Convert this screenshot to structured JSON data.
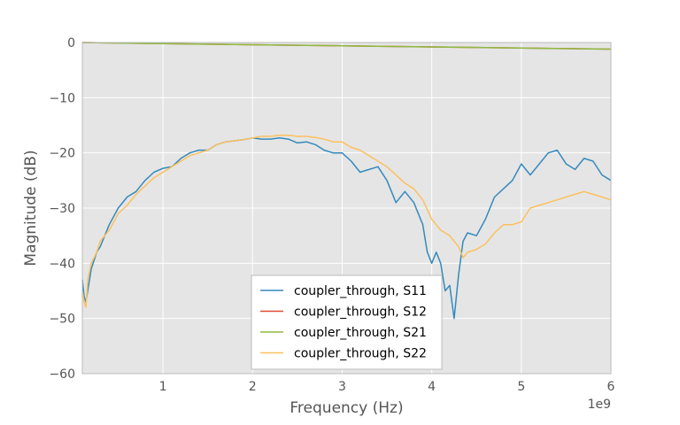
{
  "chart_data": {
    "type": "line",
    "title": "",
    "xlabel": "Frequency (Hz)",
    "ylabel": "Magnitude (dB)",
    "x_offset_label": "1e9",
    "xlim": [
      100000000,
      6000000000
    ],
    "ylim": [
      -60,
      0
    ],
    "xticks": [
      1000000000,
      2000000000,
      3000000000,
      4000000000,
      5000000000,
      6000000000
    ],
    "xtick_labels": [
      "1",
      "2",
      "3",
      "4",
      "5",
      "6"
    ],
    "yticks": [
      0,
      -10,
      -20,
      -30,
      -40,
      -50,
      -60
    ],
    "ytick_labels": [
      "0",
      "−10",
      "−20",
      "−30",
      "−40",
      "−50",
      "−60"
    ],
    "grid": true,
    "legend_position": "lower-center",
    "colors": {
      "background": "#e5e5e5",
      "grid": "#ffffff",
      "border": "#bcbcbc"
    },
    "series": [
      {
        "name": "coupler_through, S11",
        "color": "#348abd",
        "x": [
          100000000,
          120000000,
          140000000,
          160000000,
          200000000,
          260000000,
          300000000,
          350000000,
          400000000,
          500000000,
          600000000,
          700000000,
          800000000,
          900000000,
          1000000000,
          1100000000,
          1200000000,
          1300000000,
          1400000000,
          1500000000,
          1600000000,
          1700000000,
          1800000000,
          1900000000,
          2000000000,
          2100000000,
          2200000000,
          2300000000,
          2400000000,
          2500000000,
          2600000000,
          2700000000,
          2800000000,
          2900000000,
          3000000000,
          3100000000,
          3200000000,
          3300000000,
          3400000000,
          3500000000,
          3600000000,
          3700000000,
          3800000000,
          3850000000,
          3900000000,
          3950000000,
          4000000000,
          4050000000,
          4100000000,
          4150000000,
          4200000000,
          4250000000,
          4300000000,
          4350000000,
          4400000000,
          4500000000,
          4600000000,
          4650000000,
          4700000000,
          4800000000,
          4900000000,
          5000000000,
          5100000000,
          5200000000,
          5300000000,
          5400000000,
          5500000000,
          5600000000,
          5700000000,
          5800000000,
          5900000000,
          6000000000
        ],
        "values": [
          -43,
          -46,
          -47,
          -45,
          -41,
          -38,
          -37,
          -35,
          -33,
          -30,
          -28,
          -27,
          -25,
          -23.5,
          -22.8,
          -22.5,
          -21,
          -20,
          -19.5,
          -19.5,
          -18.5,
          -18,
          -17.8,
          -17.6,
          -17.3,
          -17.5,
          -17.5,
          -17.3,
          -17.5,
          -18.2,
          -18,
          -18.5,
          -19.5,
          -20,
          -20,
          -21.5,
          -23.5,
          -23,
          -22.5,
          -25,
          -29,
          -27,
          -29,
          -31,
          -33,
          -38,
          -40,
          -38,
          -40,
          -45,
          -44,
          -50,
          -42,
          -36,
          -34.5,
          -35,
          -32,
          -30,
          -28,
          -26.5,
          -25,
          -22,
          -24,
          -22,
          -20,
          -19.5,
          -22,
          -23,
          -21,
          -21.5,
          -24,
          -25
        ]
      },
      {
        "name": "coupler_through, S12",
        "color": "#e24a33",
        "x": [
          100000000,
          500000000,
          1000000000,
          1500000000,
          2000000000,
          2500000000,
          3000000000,
          3500000000,
          4000000000,
          4500000000,
          5000000000,
          5500000000,
          6000000000
        ],
        "values": [
          0,
          -0.1,
          -0.2,
          -0.3,
          -0.4,
          -0.5,
          -0.6,
          -0.7,
          -0.8,
          -0.9,
          -1.0,
          -1.1,
          -1.2
        ]
      },
      {
        "name": "coupler_through, S21",
        "color": "#8eba42",
        "x": [
          100000000,
          500000000,
          1000000000,
          1500000000,
          2000000000,
          2500000000,
          3000000000,
          3500000000,
          4000000000,
          4500000000,
          5000000000,
          5500000000,
          6000000000
        ],
        "values": [
          0,
          -0.1,
          -0.2,
          -0.3,
          -0.4,
          -0.5,
          -0.6,
          -0.7,
          -0.8,
          -0.9,
          -1.0,
          -1.1,
          -1.2
        ]
      },
      {
        "name": "coupler_through, S22",
        "color": "#fbc15e",
        "x": [
          100000000,
          120000000,
          140000000,
          160000000,
          200000000,
          260000000,
          300000000,
          350000000,
          400000000,
          500000000,
          600000000,
          700000000,
          800000000,
          900000000,
          1000000000,
          1100000000,
          1200000000,
          1300000000,
          1400000000,
          1500000000,
          1600000000,
          1700000000,
          1800000000,
          1900000000,
          2000000000,
          2100000000,
          2200000000,
          2300000000,
          2400000000,
          2500000000,
          2600000000,
          2700000000,
          2800000000,
          2900000000,
          3000000000,
          3100000000,
          3200000000,
          3300000000,
          3400000000,
          3500000000,
          3600000000,
          3700000000,
          3800000000,
          3900000000,
          4000000000,
          4100000000,
          4200000000,
          4300000000,
          4350000000,
          4400000000,
          4500000000,
          4600000000,
          4700000000,
          4800000000,
          4900000000,
          5000000000,
          5100000000,
          5200000000,
          5300000000,
          5400000000,
          5500000000,
          5600000000,
          5700000000,
          5800000000,
          5900000000,
          6000000000
        ],
        "values": [
          -45,
          -47,
          -48,
          -43,
          -40,
          -38,
          -36,
          -35,
          -34,
          -31,
          -29.5,
          -27.5,
          -26,
          -24.5,
          -23.5,
          -22.5,
          -21.5,
          -20.5,
          -20,
          -19.5,
          -18.5,
          -18,
          -17.8,
          -17.6,
          -17.3,
          -17,
          -17,
          -16.8,
          -16.8,
          -17,
          -17,
          -17.2,
          -17.5,
          -18,
          -18,
          -19,
          -19.5,
          -20.5,
          -21.5,
          -22.5,
          -24,
          -25.5,
          -26.5,
          -28.5,
          -32,
          -34,
          -35,
          -37,
          -39,
          -38,
          -37.5,
          -36.5,
          -34.5,
          -33,
          -33,
          -32.5,
          -30,
          -29.5,
          -29,
          -28.5,
          -28,
          -27.5,
          -27,
          -27.5,
          -28,
          -28.5
        ]
      }
    ]
  }
}
